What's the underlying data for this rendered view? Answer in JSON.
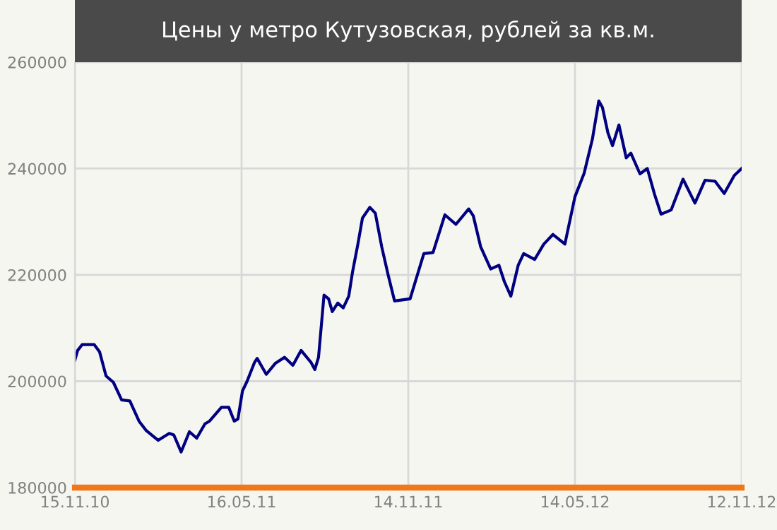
{
  "chart_data": {
    "type": "line",
    "title": "Цены у метро Кутузовская, рублей за кв.м.",
    "x": [
      "2010-11-15",
      "2010-11-18",
      "2010-11-23",
      "2010-12-06",
      "2010-12-12",
      "2010-12-19",
      "2010-12-27",
      "2011-01-05",
      "2011-01-14",
      "2011-01-24",
      "2011-02-01",
      "2011-02-14",
      "2011-02-26",
      "2011-03-03",
      "2011-03-11",
      "2011-03-20",
      "2011-03-28",
      "2011-04-06",
      "2011-04-11",
      "2011-04-24",
      "2011-05-02",
      "2011-05-08",
      "2011-05-12",
      "2011-05-17",
      "2011-05-22",
      "2011-05-30",
      "2011-06-02",
      "2011-06-12",
      "2011-06-22",
      "2011-07-02",
      "2011-07-11",
      "2011-07-20",
      "2011-07-31",
      "2011-08-04",
      "2011-08-08",
      "2011-08-14",
      "2011-08-19",
      "2011-08-23",
      "2011-08-29",
      "2011-09-04",
      "2011-09-10",
      "2011-09-14",
      "2011-09-20",
      "2011-09-25",
      "2011-10-03",
      "2011-10-09",
      "2011-10-16",
      "2011-10-23",
      "2011-10-30",
      "2011-11-16",
      "2011-12-01",
      "2011-12-11",
      "2011-12-24",
      "2012-01-05",
      "2012-01-19",
      "2012-01-24",
      "2012-02-01",
      "2012-02-12",
      "2012-02-21",
      "2012-02-27",
      "2012-03-05",
      "2012-03-13",
      "2012-03-19",
      "2012-03-31",
      "2012-04-10",
      "2012-04-20",
      "2012-05-03",
      "2012-05-14",
      "2012-05-24",
      "2012-06-02",
      "2012-06-09",
      "2012-06-13",
      "2012-06-19",
      "2012-06-24",
      "2012-07-01",
      "2012-07-09",
      "2012-07-14",
      "2012-07-24",
      "2012-08-01",
      "2012-08-09",
      "2012-08-16",
      "2012-08-27",
      "2012-09-09",
      "2012-09-22",
      "2012-10-03",
      "2012-10-14",
      "2012-10-24",
      "2012-11-04",
      "2012-11-12"
    ],
    "series": [
      {
        "color": "#000080",
        "values": [
          204000,
          205800,
          206900,
          206900,
          205500,
          201000,
          199800,
          196500,
          196300,
          192500,
          190700,
          188900,
          190200,
          189900,
          186700,
          190500,
          189300,
          192000,
          192500,
          195100,
          195100,
          192500,
          192900,
          198200,
          200000,
          203500,
          204300,
          201300,
          203400,
          204500,
          203000,
          205800,
          203500,
          202200,
          204500,
          216200,
          215500,
          213100,
          214700,
          213800,
          216000,
          220400,
          225800,
          230700,
          232700,
          231600,
          225300,
          220000,
          215100,
          215500,
          224000,
          224200,
          231300,
          229500,
          232400,
          231100,
          225300,
          221100,
          221800,
          218700,
          216000,
          221800,
          224000,
          222900,
          225800,
          227600,
          225800,
          234700,
          239100,
          245500,
          252700,
          251500,
          246700,
          244300,
          248200,
          242000,
          242900,
          239000,
          240000,
          235100,
          231400,
          232200,
          238000,
          233500,
          237800,
          237600,
          235300,
          238700,
          240000
        ]
      }
    ],
    "xlim": [
      "2010-11-15",
      "2012-11-12"
    ],
    "xticks": [
      {
        "value": "2010-11-15",
        "label": "15.11.10"
      },
      {
        "value": "2011-05-16",
        "label": "16.05.11"
      },
      {
        "value": "2011-11-14",
        "label": "14.11.11"
      },
      {
        "value": "2012-05-14",
        "label": "14.05.12"
      },
      {
        "value": "2012-11-12",
        "label": "12.11.12"
      }
    ],
    "ylim": [
      180000,
      260000
    ],
    "yticks": [
      180000,
      200000,
      220000,
      240000,
      260000
    ],
    "grid": true,
    "marker": "none",
    "line_style": "solid"
  }
}
